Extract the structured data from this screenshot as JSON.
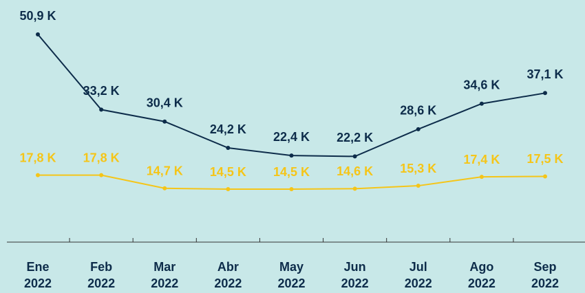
{
  "chart_data": {
    "type": "line",
    "categories": [
      "Ene 2022",
      "Feb 2022",
      "Mar 2022",
      "Abr 2022",
      "May 2022",
      "Jun 2022",
      "Jul 2022",
      "Ago 2022",
      "Sep 2022"
    ],
    "series": [
      {
        "color": "#0d2c4a",
        "values": [
          50.9,
          33.2,
          30.4,
          24.2,
          22.4,
          22.2,
          28.6,
          34.6,
          37.1
        ],
        "value_labels": [
          "50,9 K",
          "33,2 K",
          "30,4 K",
          "24,2 K",
          "22,4 K",
          "22,2 K",
          "28,6 K",
          "34,6 K",
          "37,1 K"
        ]
      },
      {
        "color": "#f5c518",
        "values": [
          17.8,
          17.8,
          14.7,
          14.5,
          14.5,
          14.6,
          15.3,
          17.4,
          17.5
        ],
        "value_labels": [
          "17,8 K",
          "17,8 K",
          "14,7 K",
          "14,5 K",
          "14,5 K",
          "14,6 K",
          "15,3 K",
          "17,4 K",
          "17,5 K"
        ]
      }
    ]
  }
}
